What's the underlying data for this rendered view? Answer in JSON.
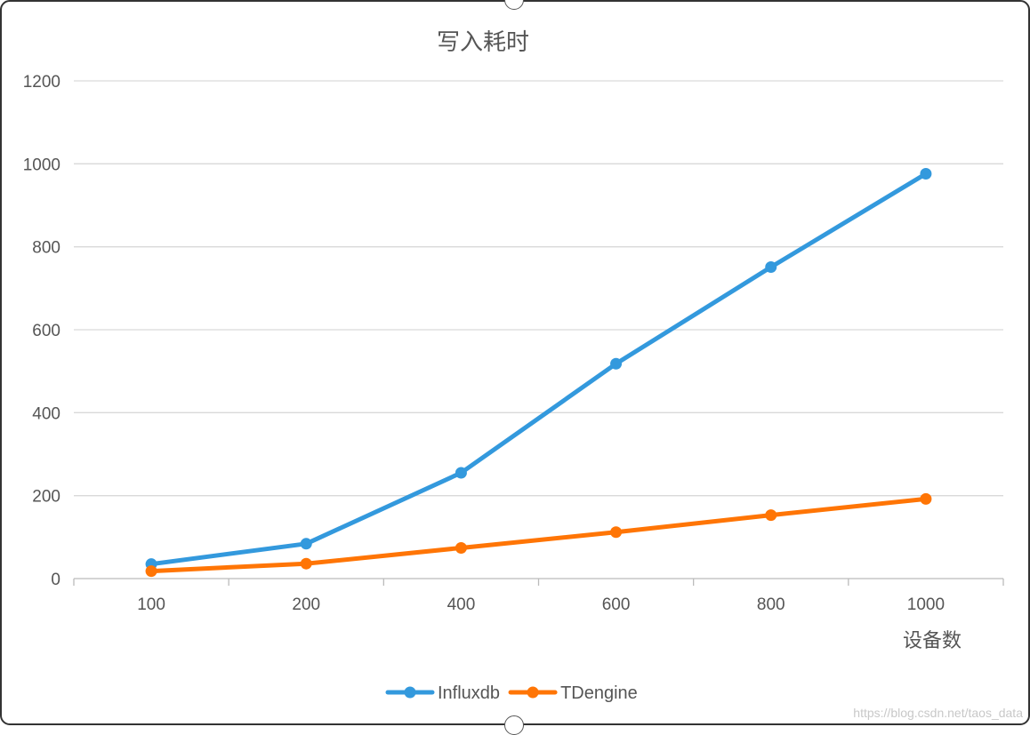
{
  "chart_data": {
    "type": "line",
    "title": "写入耗时",
    "xlabel": "设备数",
    "ylabel": "",
    "categories": [
      "100",
      "200",
      "400",
      "600",
      "800",
      "1000"
    ],
    "ylim": [
      0,
      1200
    ],
    "yticks": [
      "0",
      "200",
      "400",
      "600",
      "800",
      "1000",
      "1200"
    ],
    "grid": true,
    "legend_position": "bottom",
    "series": [
      {
        "name": "Influxdb",
        "color": "#3399dd",
        "values": [
          35,
          84,
          255,
          518,
          751,
          976
        ]
      },
      {
        "name": "TDengine",
        "color": "#ff7505",
        "values": [
          18,
          36,
          74,
          112,
          153,
          192
        ]
      }
    ]
  },
  "watermark": "https://blog.csdn.net/taos_data"
}
